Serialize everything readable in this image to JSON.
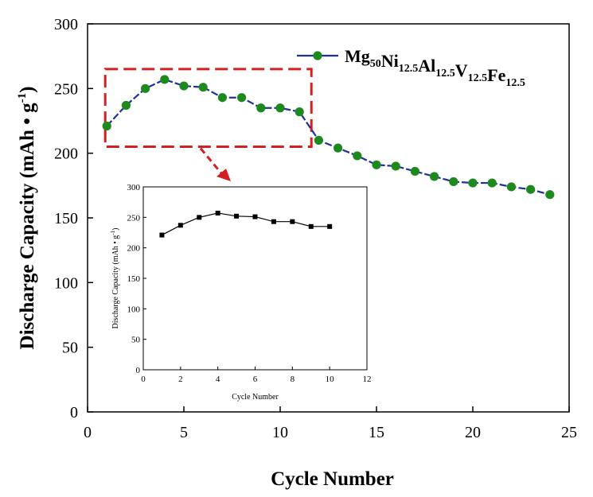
{
  "chart_data": [
    {
      "type": "line",
      "xlabel": "Cycle Number",
      "ylabel": "Discharge Capacity (mAh • g",
      "ylabel_sup": "-1",
      "ylabel_close": ")",
      "xlim": [
        0,
        25
      ],
      "ylim": [
        0,
        300
      ],
      "xticks": [
        0,
        5,
        10,
        15,
        20,
        25
      ],
      "yticks": [
        0,
        50,
        100,
        150,
        200,
        250,
        300
      ],
      "legend_position": "top-right",
      "colors": {
        "line": "#1f2fa0",
        "marker": "#1e8a1e",
        "highlight": "#d42020"
      },
      "legend": {
        "parts": [
          {
            "text": "Mg",
            "sub": "50"
          },
          {
            "text": "Ni",
            "sub": "12.5"
          },
          {
            "text": "Al",
            "sub": "12.5"
          },
          {
            "text": "V",
            "sub": "12.5"
          },
          {
            "text": "Fe",
            "sub": "12.5"
          }
        ]
      },
      "highlight_region": {
        "x": [
          1,
          11
        ],
        "y": [
          205,
          265
        ]
      },
      "series": [
        {
          "name": "Mg50Ni12.5Al12.5V12.5Fe12.5",
          "x": [
            1,
            2,
            3,
            4,
            5,
            6,
            7,
            8,
            9,
            10,
            11,
            12,
            13,
            14,
            15,
            16,
            17,
            18,
            19,
            20,
            21,
            22,
            23,
            24
          ],
          "values": [
            221,
            237,
            250,
            257,
            252,
            251,
            243,
            243,
            235,
            235,
            232,
            210,
            204,
            198,
            191,
            190,
            186,
            182,
            178,
            177,
            177,
            174,
            172,
            168
          ]
        }
      ]
    },
    {
      "type": "line",
      "inset": true,
      "xlabel": "Cycle Number",
      "ylabel": "Discharge Capacity (mAh • g",
      "ylabel_sup": "-1",
      "ylabel_close": ")",
      "xlim": [
        0,
        12
      ],
      "ylim": [
        0,
        300
      ],
      "xticks": [
        0,
        2,
        4,
        6,
        8,
        10,
        12
      ],
      "yticks": [
        0,
        50,
        100,
        150,
        200,
        250,
        300
      ],
      "series": [
        {
          "name": "inset",
          "x": [
            1,
            2,
            3,
            4,
            5,
            6,
            7,
            8,
            9,
            10
          ],
          "values": [
            221,
            237,
            250,
            257,
            252,
            251,
            243,
            243,
            235,
            235
          ]
        }
      ]
    }
  ]
}
